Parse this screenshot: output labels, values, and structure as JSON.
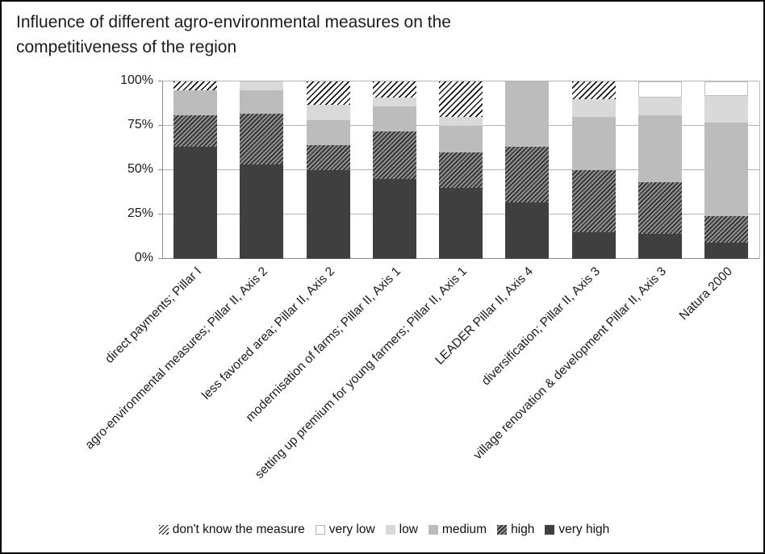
{
  "chart_data": {
    "type": "bar",
    "stacked": true,
    "percent_scale": true,
    "title": "Influence of different agro-environmental measures on the competitiveness of the region",
    "title_lines": [
      "Influence of different agro-environmental measures on the",
      "competitiveness of the region"
    ],
    "categories": [
      "direct payments; Pillar I",
      "agro-environmental measures; Pillar II, Axis 2",
      "less favored area; Pillar II, Axis 2",
      "modernisation of farms; Pillar II, Axis 1",
      "setting up premium for young farmers; Pillar II, Axis 1",
      "LEADER Pillar II, Axis 4",
      "diversification; Pillar II, Axis 3",
      "village renovation & development Pillar II, Axis 3",
      "Natura 2000"
    ],
    "series": [
      {
        "key": "very_high",
        "name": "very high",
        "values": [
          63,
          53,
          50,
          45,
          40,
          32,
          15,
          14,
          9
        ]
      },
      {
        "key": "high",
        "name": "high",
        "values": [
          18,
          29,
          14,
          27,
          20,
          31,
          35,
          29,
          15
        ]
      },
      {
        "key": "medium",
        "name": "medium",
        "values": [
          14,
          13,
          14,
          14,
          15,
          37,
          30,
          38,
          53
        ]
      },
      {
        "key": "low",
        "name": "low",
        "values": [
          0,
          5,
          9,
          5,
          5,
          0,
          10,
          10,
          15
        ]
      },
      {
        "key": "very_low",
        "name": "very low",
        "values": [
          0,
          0,
          0,
          0,
          0,
          0,
          0,
          9,
          8
        ]
      },
      {
        "key": "dont_know",
        "name": "don't know the measure",
        "values": [
          5,
          0,
          13,
          9,
          20,
          0,
          10,
          0,
          0
        ]
      }
    ],
    "y_axis": {
      "tick_labels": [
        "0%",
        "25%",
        "50%",
        "75%",
        "100%"
      ],
      "tick_values": [
        0,
        25,
        50,
        75,
        100
      ],
      "min": 0,
      "max": 100,
      "grid": true
    },
    "legend": {
      "position": "bottom",
      "order": [
        "dont_know",
        "very_low",
        "low",
        "medium",
        "high",
        "very_high"
      ]
    },
    "colors": {
      "very_high": "#3f3f3f",
      "high_hatch_base": "#8a8a8a",
      "high_hatch_stripe": "#1f1f1f",
      "medium": "#bcbcbc",
      "low": "#d9d9d9",
      "very_low": "#ffffff",
      "dont_know_hatch_stripe": "#141414",
      "gridline": "#b3b3b3",
      "axis_line": "#8c8c8c"
    }
  }
}
